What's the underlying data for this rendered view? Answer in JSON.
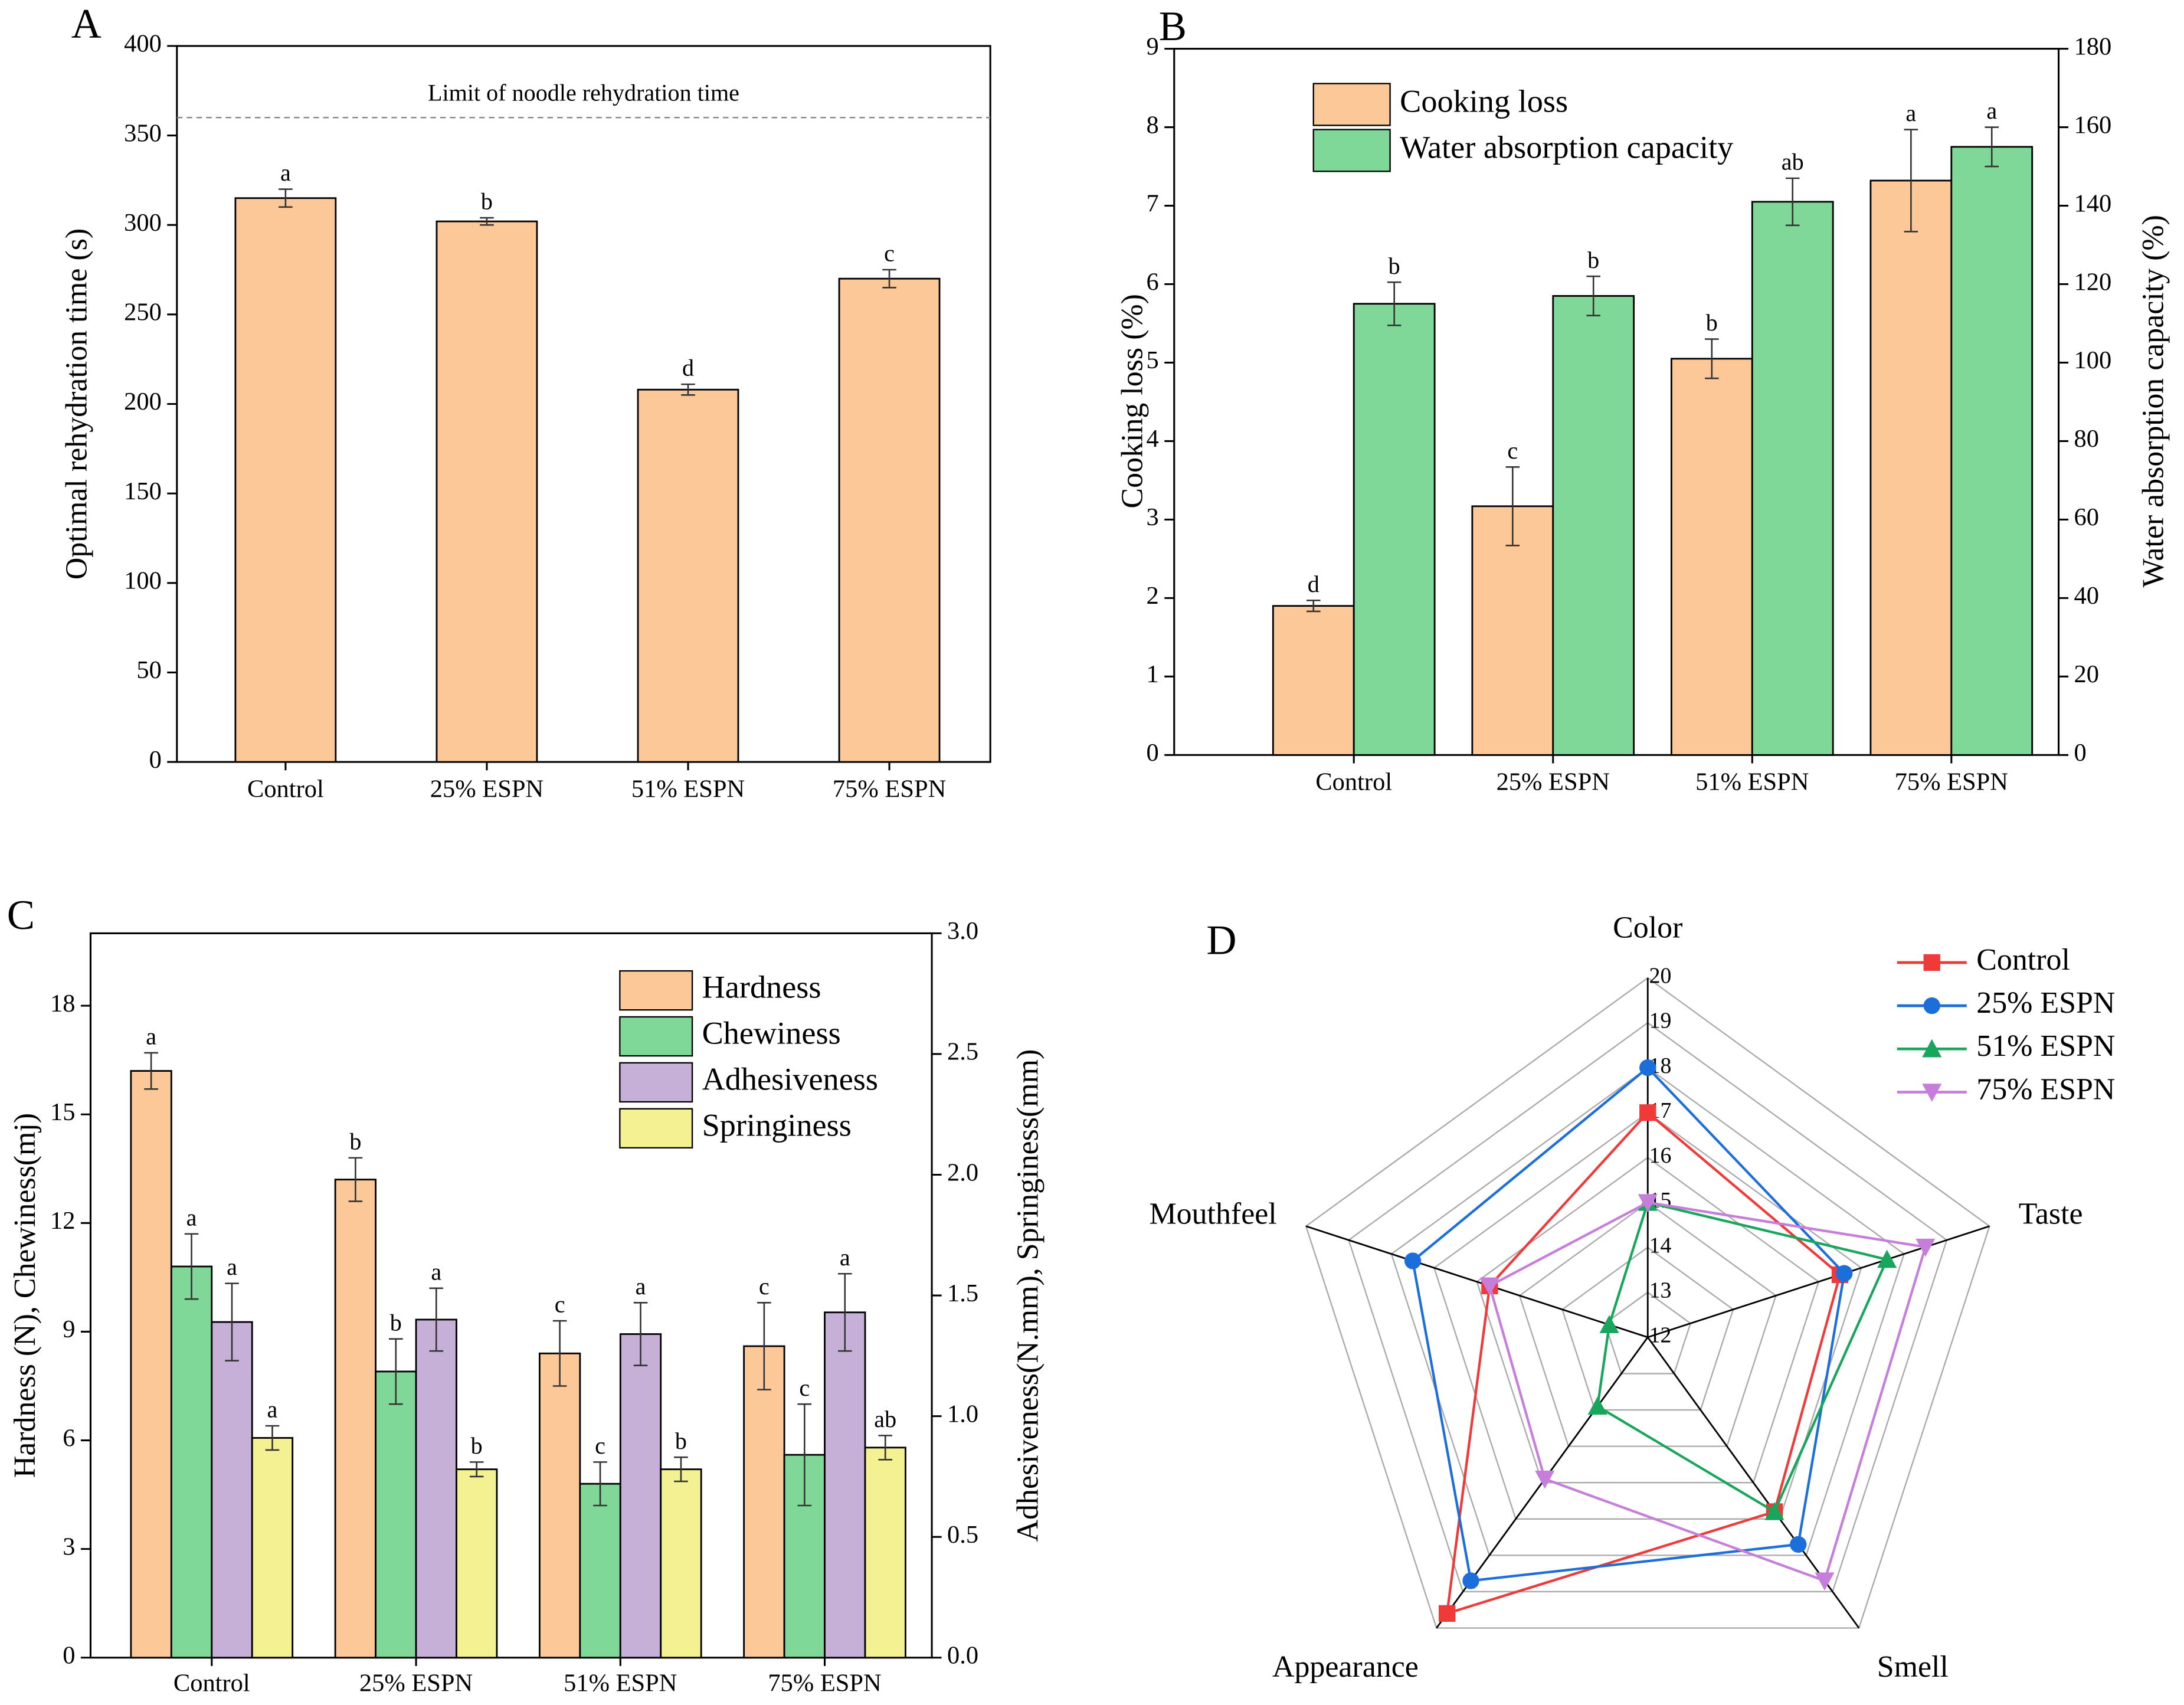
{
  "chart_data": [
    {
      "type": "bar",
      "panel": "A",
      "ylabel": "Optimal rehydration time (s)",
      "categories": [
        "Control",
        "25% ESPN",
        "51% ESPN",
        "75% ESPN"
      ],
      "values": [
        315,
        302,
        208,
        270
      ],
      "errors": [
        5,
        2,
        3,
        5
      ],
      "letters": [
        "a",
        "b",
        "d",
        "c"
      ],
      "color": "#fdc898",
      "ylim": [
        0,
        400
      ],
      "yticks": [
        0,
        50,
        100,
        150,
        200,
        250,
        300,
        350,
        400
      ],
      "annotation": {
        "text": "Limit of noodle rehydration time",
        "value": 360
      }
    },
    {
      "type": "bar",
      "panel": "B",
      "ylabel": "Cooking loss (%)",
      "y2label": "Water absorption capacity (%)",
      "categories": [
        "Control",
        "25% ESPN",
        "51% ESPN",
        "75% ESPN"
      ],
      "series": [
        {
          "name": "Cooking loss",
          "color": "#fdc898",
          "values": [
            1.9,
            3.17,
            5.05,
            7.32
          ],
          "errors": [
            0.07,
            0.5,
            0.25,
            0.65
          ],
          "letters": [
            "d",
            "c",
            "b",
            "a"
          ]
        },
        {
          "name": "Water absorption capacity",
          "color": "#7fd897",
          "axis": "y2",
          "values": [
            115,
            117,
            141,
            155
          ],
          "errors": [
            5.5,
            5,
            6,
            5
          ],
          "letters": [
            "b",
            "b",
            "ab",
            "a"
          ]
        }
      ],
      "ylim": [
        0,
        9
      ],
      "yticks": [
        0,
        1,
        2,
        3,
        4,
        5,
        6,
        7,
        8,
        9
      ],
      "y2lim": [
        0,
        180
      ],
      "y2ticks": [
        0,
        20,
        40,
        60,
        80,
        100,
        120,
        140,
        160,
        180
      ],
      "legend": "upper left"
    },
    {
      "type": "bar",
      "panel": "C",
      "ylabel": "Hardness (N), Chewiness(mj)",
      "y2label": "Adhesiveness(N.mm), Springiness(mm)",
      "categories": [
        "Control",
        "25% ESPN",
        "51% ESPN",
        "75% ESPN"
      ],
      "series": [
        {
          "name": "Hardness",
          "color": "#fdc898",
          "values": [
            16.2,
            13.2,
            8.4,
            8.6
          ],
          "errors": [
            0.5,
            0.6,
            0.9,
            1.2
          ],
          "letters": [
            "a",
            "b",
            "c",
            "c"
          ]
        },
        {
          "name": "Chewiness",
          "color": "#7fd897",
          "values": [
            10.8,
            7.9,
            4.8,
            5.6
          ],
          "errors": [
            0.9,
            0.9,
            0.6,
            1.4
          ],
          "letters": [
            "a",
            "b",
            "c",
            "c"
          ]
        },
        {
          "name": "Adhesiveness",
          "color": "#c6b0d8",
          "axis": "y2",
          "values": [
            1.39,
            1.4,
            1.34,
            1.43
          ],
          "errors": [
            0.16,
            0.13,
            0.13,
            0.16
          ],
          "letters": [
            "a",
            "a",
            "a",
            "a"
          ]
        },
        {
          "name": "Springiness",
          "color": "#f3f192",
          "axis": "y2",
          "values": [
            0.91,
            0.78,
            0.78,
            0.87
          ],
          "errors": [
            0.05,
            0.03,
            0.05,
            0.05
          ],
          "letters": [
            "a",
            "b",
            "b",
            "ab"
          ]
        }
      ],
      "ylim": [
        0,
        20
      ],
      "yticks": [
        0,
        3,
        6,
        9,
        12,
        15,
        18
      ],
      "y2lim": [
        0,
        3
      ],
      "y2ticks": [
        {
          "value": 0,
          "label": "0.0"
        },
        0.5,
        {
          "value": 1,
          "label": "1.0"
        },
        1.5,
        {
          "value": 2,
          "label": "2.0"
        },
        2.5,
        {
          "value": 3,
          "label": "3.0"
        }
      ],
      "legend": "upper right"
    },
    {
      "type": "radar",
      "panel": "D",
      "axes": [
        "Color",
        "Taste",
        "Smell",
        "Appearance",
        "Mouthfeel"
      ],
      "rlim": [
        12,
        20
      ],
      "rticks": [
        12,
        13,
        14,
        15,
        16,
        17,
        18,
        19,
        20
      ],
      "series": [
        {
          "name": "Control",
          "color": "#f03a3a",
          "marker": "square",
          "values": [
            17,
            16.5,
            16.8,
            19.6,
            15.7
          ]
        },
        {
          "name": "25% ESPN",
          "color": "#1c6fdb",
          "marker": "circle",
          "values": [
            18,
            16.6,
            17.7,
            18.7,
            17.5
          ]
        },
        {
          "name": "51% ESPN",
          "color": "#17a65b",
          "marker": "triangle-up",
          "values": [
            15,
            17.6,
            16.8,
            13.9,
            12.9
          ]
        },
        {
          "name": "75% ESPN",
          "color": "#c77edb",
          "marker": "triangle-down",
          "values": [
            15,
            18.5,
            18.7,
            15.9,
            15.7
          ]
        }
      ],
      "legend": "upper right"
    }
  ]
}
